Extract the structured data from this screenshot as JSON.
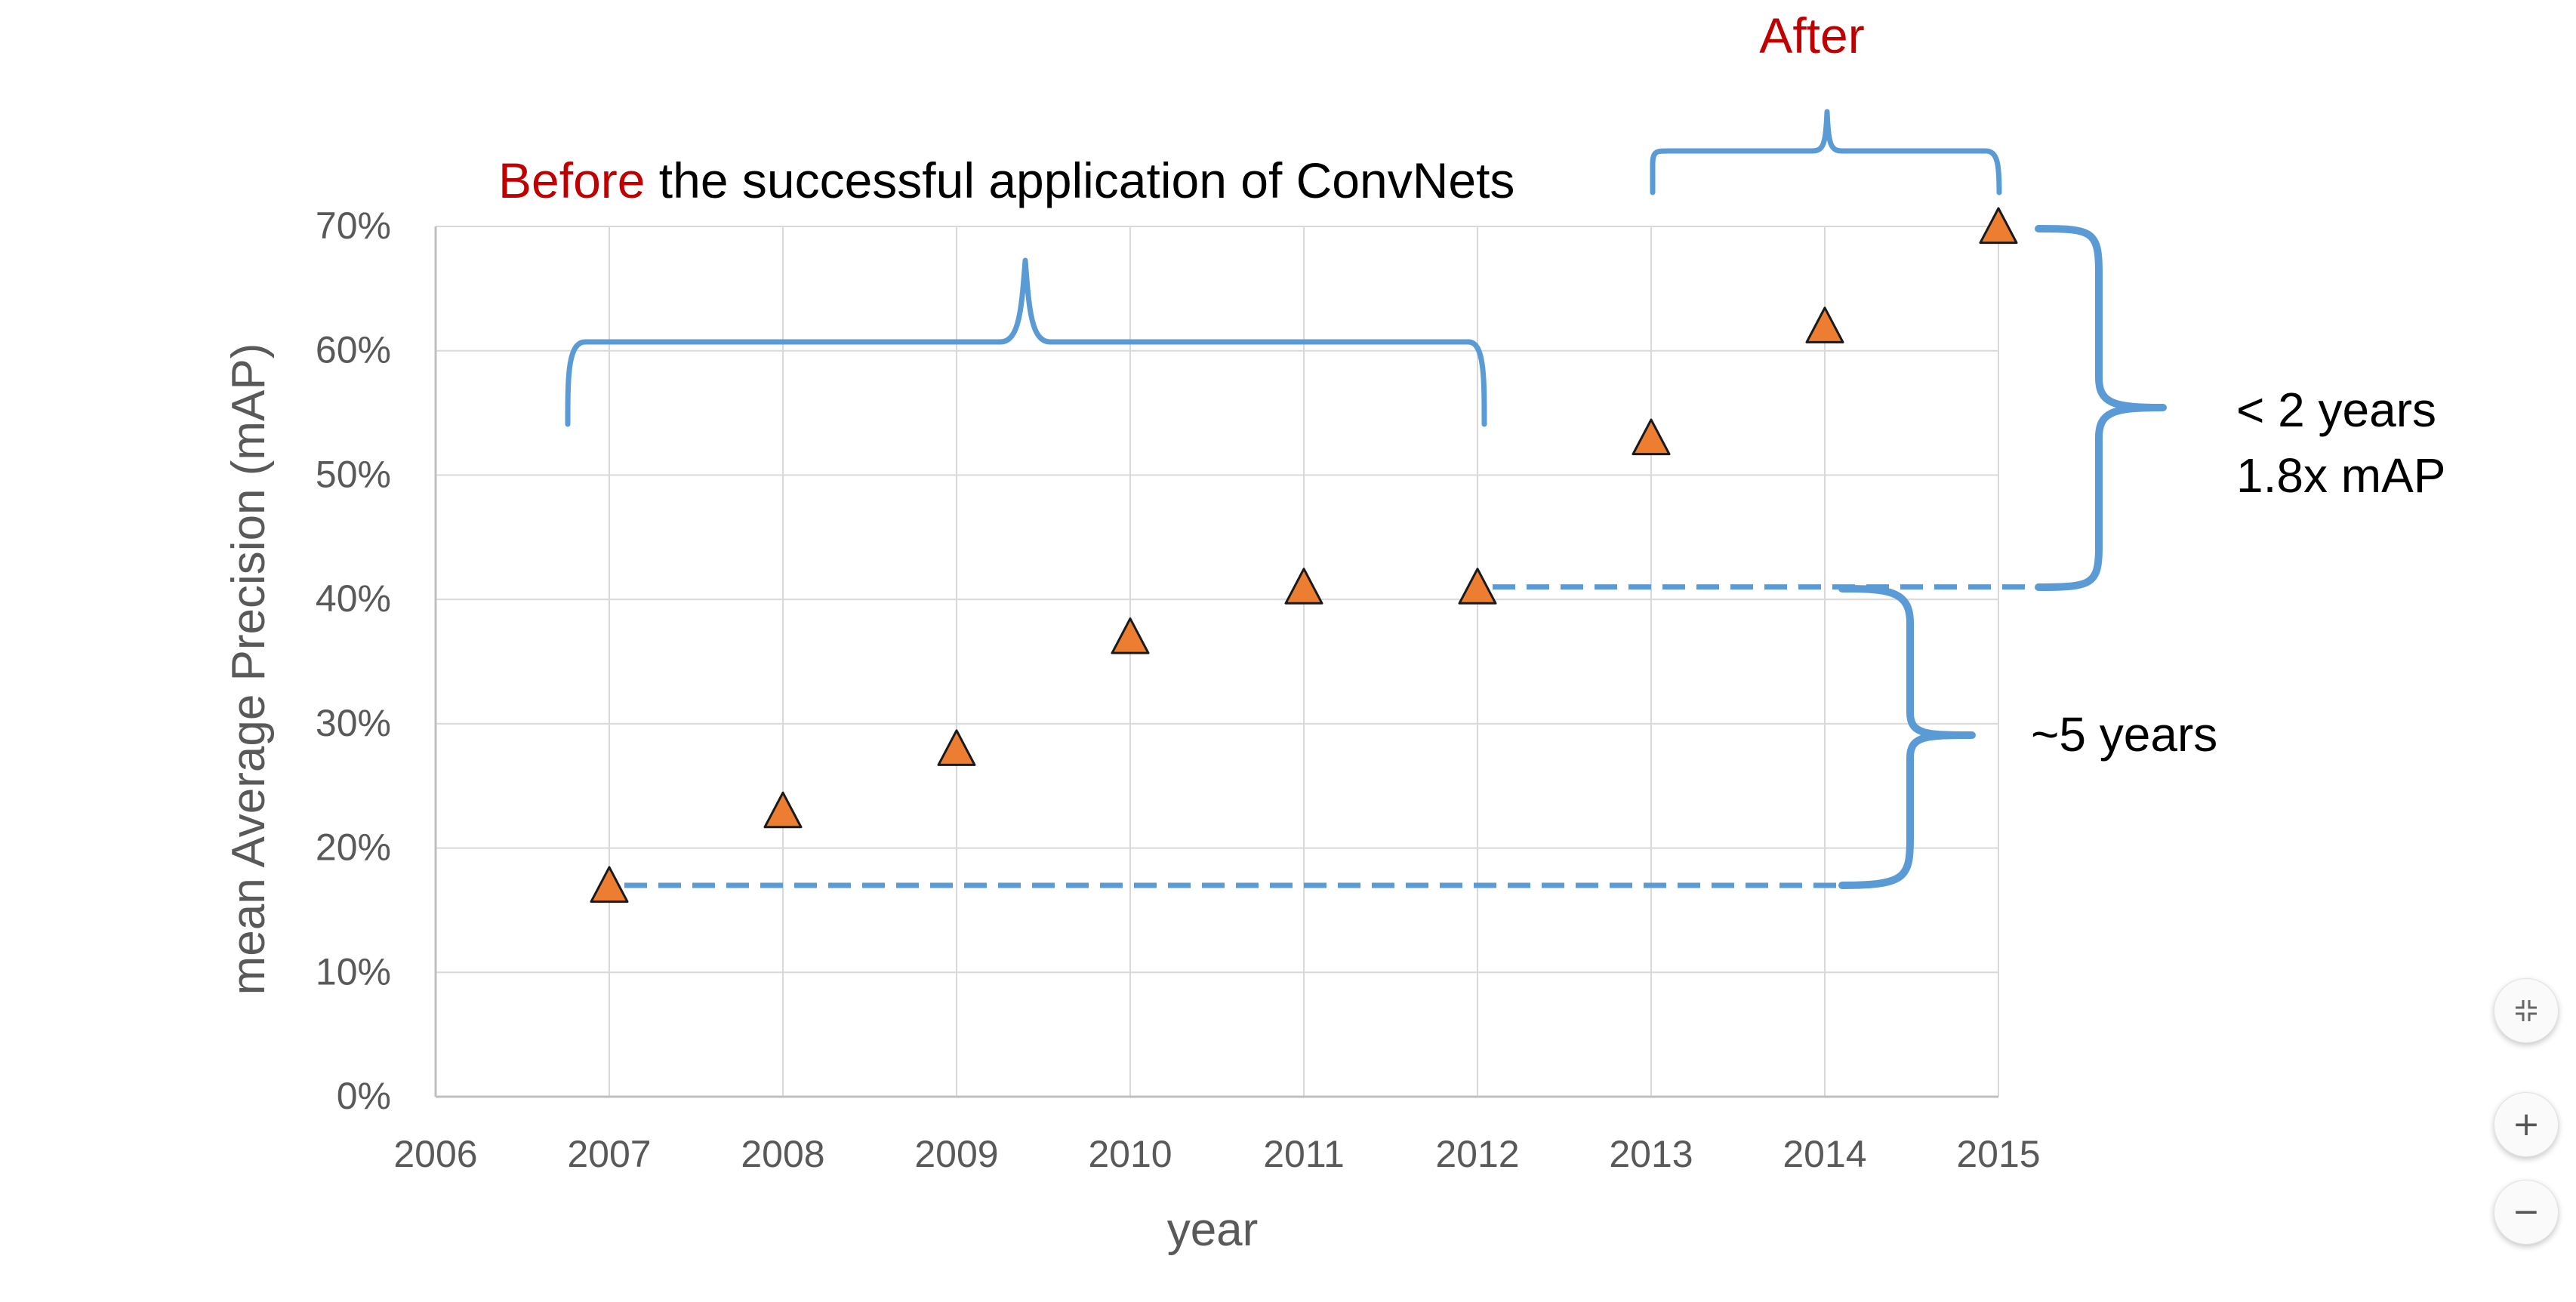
{
  "chart_data": {
    "type": "scatter",
    "xlabel": "year",
    "ylabel": "mean Average Precision (mAP)",
    "xlim": [
      2006,
      2015
    ],
    "ylim": [
      0,
      0.7
    ],
    "x_ticks": [
      2006,
      2007,
      2008,
      2009,
      2010,
      2011,
      2012,
      2013,
      2014,
      2015
    ],
    "y_ticks": [
      "0%",
      "10%",
      "20%",
      "30%",
      "40%",
      "50%",
      "60%",
      "70%"
    ],
    "grid": true,
    "marker": "triangle",
    "marker_color": "#ED7D31",
    "x": [
      2007,
      2008,
      2009,
      2010,
      2011,
      2012,
      2013,
      2014,
      2015
    ],
    "y": [
      0.17,
      0.23,
      0.28,
      0.37,
      0.41,
      0.41,
      0.53,
      0.62,
      0.7
    ],
    "annotations": {
      "before": {
        "highlight": "Before",
        "rest": " the successful application of ConvNets"
      },
      "after": "After",
      "five_years": "~5 years",
      "two_years_line1": "< 2 years",
      "two_years_line2": "1.8x mAP"
    }
  },
  "colors": {
    "accent_red": "#C00000",
    "bracket_blue": "#5B9BD5",
    "grid": "#D9D9D9",
    "axis_text": "#595959"
  },
  "controls": {
    "fit_icon": "collapse-icon",
    "zoom_in": "+",
    "zoom_out": "−"
  }
}
